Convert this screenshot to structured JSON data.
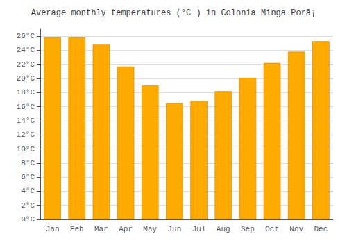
{
  "chart_data": {
    "type": "bar",
    "title": "Average monthly temperatures (°C ) in Colonia Minga Porã¡",
    "categories": [
      "Jan",
      "Feb",
      "Mar",
      "Apr",
      "May",
      "Jun",
      "Jul",
      "Aug",
      "Sep",
      "Oct",
      "Nov",
      "Dec"
    ],
    "values": [
      25.8,
      25.8,
      24.8,
      21.7,
      19.0,
      16.5,
      16.8,
      18.2,
      20.1,
      22.2,
      23.8,
      25.3
    ],
    "color": "#FFAA00",
    "ylim": [
      0,
      27
    ],
    "yticks": [
      {
        "value": 0,
        "label": "0°C"
      },
      {
        "value": 2,
        "label": "2°C"
      },
      {
        "value": 4,
        "label": "4°C"
      },
      {
        "value": 6,
        "label": "6°C"
      },
      {
        "value": 8,
        "label": "8°C"
      },
      {
        "value": 10,
        "label": "10°C"
      },
      {
        "value": 12,
        "label": "12°C"
      },
      {
        "value": 14,
        "label": "14°C"
      },
      {
        "value": 16,
        "label": "16°C"
      },
      {
        "value": 18,
        "label": "18°C"
      },
      {
        "value": 20,
        "label": "20°C"
      },
      {
        "value": 22,
        "label": "22°C"
      },
      {
        "value": 24,
        "label": "24°C"
      },
      {
        "value": 26,
        "label": "26°C"
      }
    ],
    "grid": true
  }
}
